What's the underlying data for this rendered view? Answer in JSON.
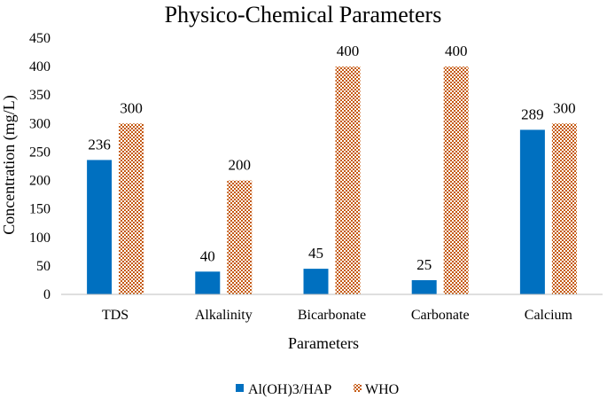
{
  "chart_data": {
    "type": "bar",
    "title": "Physico-Chemical Parameters",
    "xlabel": "Parameters",
    "ylabel": "Concentration (mg/L)",
    "categories": [
      "TDS",
      "Alkalinity",
      "Bicarbonate",
      "Carbonate",
      "Calcium"
    ],
    "series": [
      {
        "name": "Al(OH)3/HAP",
        "values": [
          236,
          40,
          45,
          25,
          289
        ],
        "color": "#0070c0",
        "pattern": "solid"
      },
      {
        "name": "WHO",
        "values": [
          300,
          200,
          400,
          400,
          300
        ],
        "color": "#c55a11",
        "pattern": "checkerboard"
      }
    ],
    "ylim": [
      0,
      450
    ],
    "yticks": [
      0,
      50,
      100,
      150,
      200,
      250,
      300,
      350,
      400,
      450
    ],
    "grid": false,
    "legend_position": "bottom"
  }
}
